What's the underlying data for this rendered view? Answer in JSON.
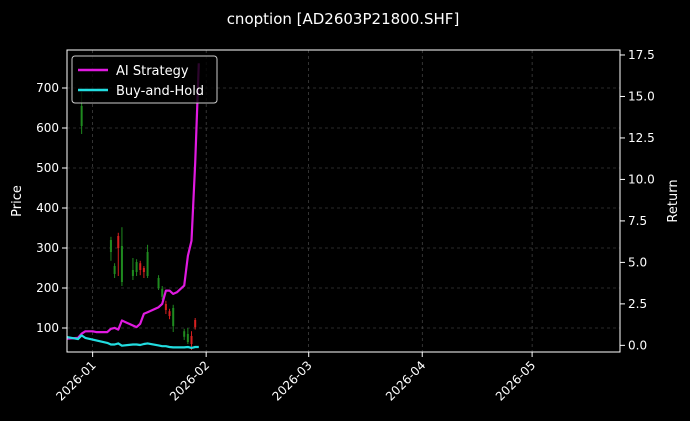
{
  "chart_data": {
    "type": "candlestick+line",
    "title": "cnoption [AD2603P21800.SHF]",
    "grid": true,
    "legend_position": "top-left",
    "x_axis": {
      "type": "date",
      "range": [
        "2025-12-25",
        "2026-05-25"
      ],
      "ticks": [
        "2026-01",
        "2026-02",
        "2026-03",
        "2026-04",
        "2026-05"
      ],
      "tick_dates": [
        "2026-01-01",
        "2026-02-01",
        "2026-03-01",
        "2026-04-01",
        "2026-05-01"
      ]
    },
    "y_left": {
      "label": "Price",
      "range": [
        40,
        795
      ],
      "ticks": [
        "100",
        "200",
        "300",
        "400",
        "500",
        "600",
        "700"
      ],
      "tick_values": [
        100,
        200,
        300,
        400,
        500,
        600,
        700
      ]
    },
    "y_right": {
      "label": "Return",
      "range": [
        -0.4,
        17.8
      ],
      "ticks": [
        "0.0",
        "2.5",
        "5.0",
        "7.5",
        "10.0",
        "12.5",
        "15.0",
        "17.5"
      ],
      "tick_values": [
        0,
        2.5,
        5,
        7.5,
        10,
        12.5,
        15,
        17.5
      ]
    },
    "colors": {
      "up": "#1f8a1f",
      "down": "#d62020",
      "grid": "#555555",
      "ai": "#e01ae0",
      "bh": "#22dde0"
    },
    "candles": [
      {
        "date": "2025-12-29",
        "open": 605,
        "close": 655,
        "high": 690,
        "low": 585
      },
      {
        "date": "2026-01-06",
        "open": 290,
        "close": 320,
        "high": 328,
        "low": 268
      },
      {
        "date": "2026-01-07",
        "open": 235,
        "close": 255,
        "high": 262,
        "low": 225
      },
      {
        "date": "2026-01-08",
        "open": 330,
        "close": 300,
        "high": 338,
        "low": 230
      },
      {
        "date": "2026-01-09",
        "open": 215,
        "close": 305,
        "high": 352,
        "low": 205
      },
      {
        "date": "2026-01-12",
        "open": 230,
        "close": 245,
        "high": 275,
        "low": 220
      },
      {
        "date": "2026-01-13",
        "open": 240,
        "close": 265,
        "high": 272,
        "low": 230
      },
      {
        "date": "2026-01-14",
        "open": 262,
        "close": 245,
        "high": 268,
        "low": 232
      },
      {
        "date": "2026-01-15",
        "open": 250,
        "close": 240,
        "high": 255,
        "low": 225
      },
      {
        "date": "2026-01-16",
        "open": 230,
        "close": 290,
        "high": 308,
        "low": 225
      },
      {
        "date": "2026-01-19",
        "open": 200,
        "close": 225,
        "high": 232,
        "low": 195
      },
      {
        "date": "2026-01-20",
        "open": 178,
        "close": 198,
        "high": 205,
        "low": 170
      },
      {
        "date": "2026-01-21",
        "open": 160,
        "close": 145,
        "high": 168,
        "low": 135
      },
      {
        "date": "2026-01-22",
        "open": 142,
        "close": 130,
        "high": 148,
        "low": 122
      },
      {
        "date": "2026-01-23",
        "open": 105,
        "close": 150,
        "high": 158,
        "low": 90
      },
      {
        "date": "2026-01-26",
        "open": 78,
        "close": 92,
        "high": 98,
        "low": 70
      },
      {
        "date": "2026-01-27",
        "open": 65,
        "close": 85,
        "high": 100,
        "low": 60
      },
      {
        "date": "2026-01-28",
        "open": 80,
        "close": 60,
        "high": 92,
        "low": 45
      },
      {
        "date": "2026-01-29",
        "open": 120,
        "close": 102,
        "high": 125,
        "low": 96
      }
    ],
    "series": [
      {
        "name": "AI Strategy",
        "color": "#e01ae0",
        "points": [
          {
            "date": "2025-12-25",
            "y": 0.4
          },
          {
            "date": "2025-12-28",
            "y": 0.45
          },
          {
            "date": "2025-12-29",
            "y": 0.7
          },
          {
            "date": "2025-12-30",
            "y": 0.85
          },
          {
            "date": "2026-01-01",
            "y": 0.85
          },
          {
            "date": "2026-01-02",
            "y": 0.8
          },
          {
            "date": "2026-01-05",
            "y": 0.8
          },
          {
            "date": "2026-01-06",
            "y": 1.0
          },
          {
            "date": "2026-01-07",
            "y": 1.05
          },
          {
            "date": "2026-01-08",
            "y": 0.95
          },
          {
            "date": "2026-01-09",
            "y": 1.5
          },
          {
            "date": "2026-01-12",
            "y": 1.2
          },
          {
            "date": "2026-01-13",
            "y": 1.1
          },
          {
            "date": "2026-01-14",
            "y": 1.3
          },
          {
            "date": "2026-01-15",
            "y": 1.9
          },
          {
            "date": "2026-01-16",
            "y": 2.0
          },
          {
            "date": "2026-01-19",
            "y": 2.3
          },
          {
            "date": "2026-01-20",
            "y": 2.5
          },
          {
            "date": "2026-01-21",
            "y": 3.3
          },
          {
            "date": "2026-01-22",
            "y": 3.3
          },
          {
            "date": "2026-01-23",
            "y": 3.1
          },
          {
            "date": "2026-01-24",
            "y": 3.2
          },
          {
            "date": "2026-01-26",
            "y": 3.6
          },
          {
            "date": "2026-01-27",
            "y": 5.4
          },
          {
            "date": "2026-01-28",
            "y": 6.3
          },
          {
            "date": "2026-01-29",
            "y": 11.0
          },
          {
            "date": "2026-01-30",
            "y": 17.0
          }
        ]
      },
      {
        "name": "Buy-and-Hold",
        "color": "#22dde0",
        "points": [
          {
            "date": "2025-12-25",
            "y": 0.5
          },
          {
            "date": "2025-12-28",
            "y": 0.38
          },
          {
            "date": "2025-12-29",
            "y": 0.6
          },
          {
            "date": "2025-12-30",
            "y": 0.45
          },
          {
            "date": "2026-01-02",
            "y": 0.3
          },
          {
            "date": "2026-01-05",
            "y": 0.15
          },
          {
            "date": "2026-01-06",
            "y": 0.05
          },
          {
            "date": "2026-01-07",
            "y": 0.05
          },
          {
            "date": "2026-01-08",
            "y": 0.12
          },
          {
            "date": "2026-01-09",
            "y": -0.02
          },
          {
            "date": "2026-01-12",
            "y": 0.05
          },
          {
            "date": "2026-01-13",
            "y": 0.05
          },
          {
            "date": "2026-01-14",
            "y": 0.02
          },
          {
            "date": "2026-01-15",
            "y": 0.08
          },
          {
            "date": "2026-01-16",
            "y": 0.12
          },
          {
            "date": "2026-01-19",
            "y": 0.0
          },
          {
            "date": "2026-01-20",
            "y": -0.05
          },
          {
            "date": "2026-01-21",
            "y": -0.05
          },
          {
            "date": "2026-01-22",
            "y": -0.1
          },
          {
            "date": "2026-01-23",
            "y": -0.12
          },
          {
            "date": "2026-01-26",
            "y": -0.12
          },
          {
            "date": "2026-01-27",
            "y": -0.1
          },
          {
            "date": "2026-01-28",
            "y": -0.15
          },
          {
            "date": "2026-01-29",
            "y": -0.1
          },
          {
            "date": "2026-01-30",
            "y": -0.1
          }
        ]
      }
    ]
  }
}
